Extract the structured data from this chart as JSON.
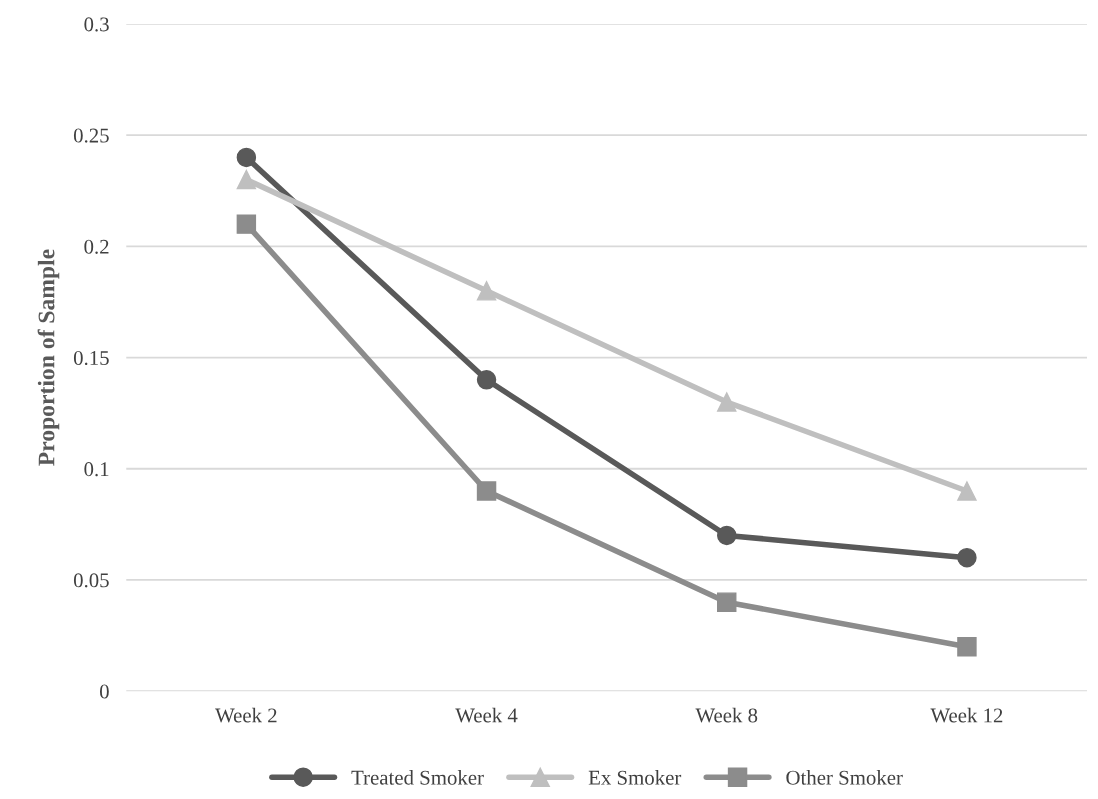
{
  "chart_data": {
    "type": "line",
    "ylabel": "Proportion of Sample",
    "categories": [
      "Week 2",
      "Week 4",
      "Week 8",
      "Week 12"
    ],
    "series": [
      {
        "name": "Treated Smoker",
        "color": "#595959",
        "marker": "circle",
        "values": [
          0.24,
          0.14,
          0.07,
          0.06
        ]
      },
      {
        "name": "Ex Smoker",
        "color": "#bfbfbf",
        "marker": "triangle",
        "values": [
          0.23,
          0.18,
          0.13,
          0.09
        ]
      },
      {
        "name": "Other Smoker",
        "color": "#8c8c8c",
        "marker": "square",
        "values": [
          0.21,
          0.09,
          0.04,
          0.02
        ]
      }
    ],
    "ylim": [
      0,
      0.3
    ],
    "yticks": [
      0,
      0.05,
      0.1,
      0.15,
      0.2,
      0.25,
      0.3
    ],
    "grid": "y",
    "legend": "bottom",
    "line_style": "solid"
  }
}
